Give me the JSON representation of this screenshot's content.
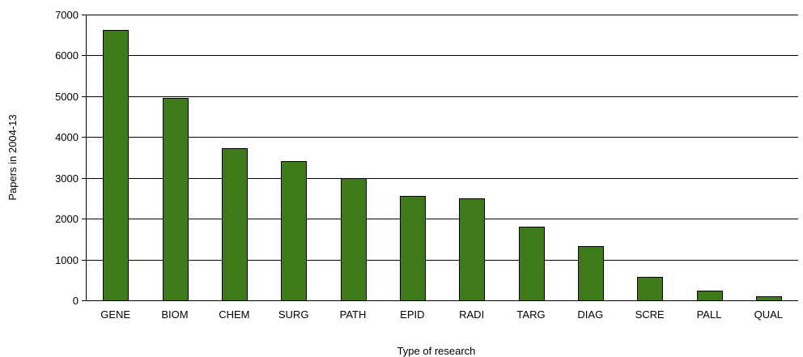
{
  "chart_data": {
    "type": "bar",
    "title": "",
    "xlabel": "Type of research",
    "ylabel": "Papers in 2004-13",
    "categories": [
      "GENE",
      "BIOM",
      "CHEM",
      "SURG",
      "PATH",
      "EPID",
      "RADI",
      "TARG",
      "DIAG",
      "SCRE",
      "PALL",
      "QUAL"
    ],
    "values": [
      6620,
      4960,
      3720,
      3420,
      2990,
      2560,
      2490,
      1800,
      1320,
      580,
      230,
      100
    ],
    "ylim": [
      0,
      7000
    ],
    "yticks": [
      "0",
      "1000",
      "2000",
      "3000",
      "4000",
      "5000",
      "6000",
      "7000"
    ],
    "grid": "horizontal",
    "legend": "none",
    "colors": {
      "bar_fill": "#3f7a1a",
      "bar_stroke": "#000000",
      "grid": "#000000"
    }
  }
}
